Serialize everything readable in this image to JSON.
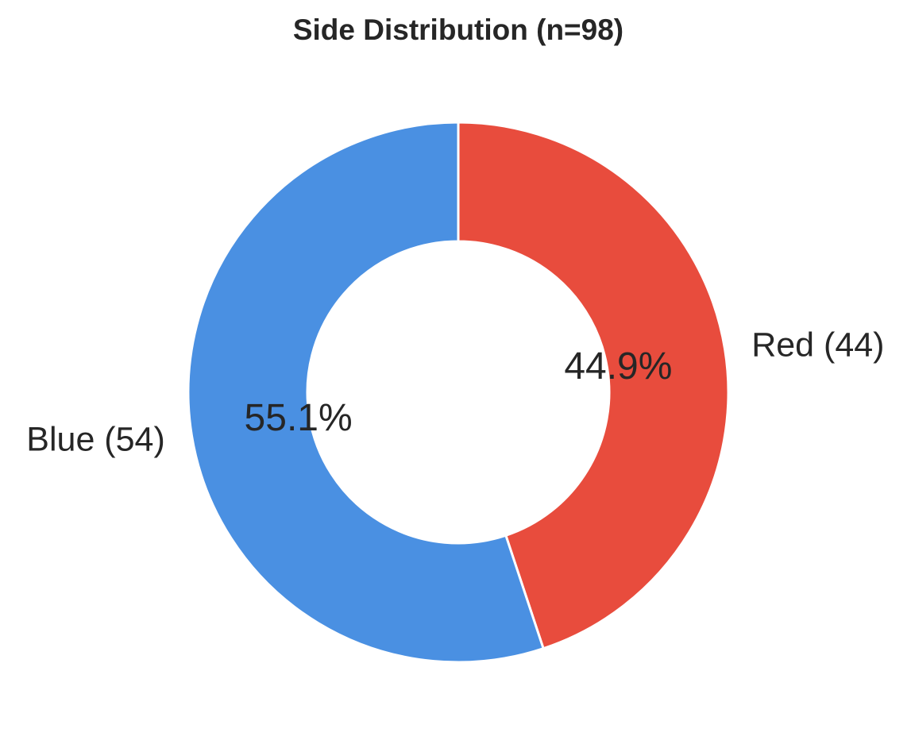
{
  "chart_data": {
    "type": "pie",
    "variant": "donut",
    "title": "Side Distribution (n=98)",
    "categories": [
      "Red (44)",
      "Blue (54)"
    ],
    "values": [
      44,
      54
    ],
    "percent_labels": [
      "44.9%",
      "55.1%"
    ],
    "colors": [
      "#E84C3D",
      "#4A90E2"
    ],
    "start_angle_deg": 90,
    "direction": "clockwise",
    "legend": "none"
  }
}
